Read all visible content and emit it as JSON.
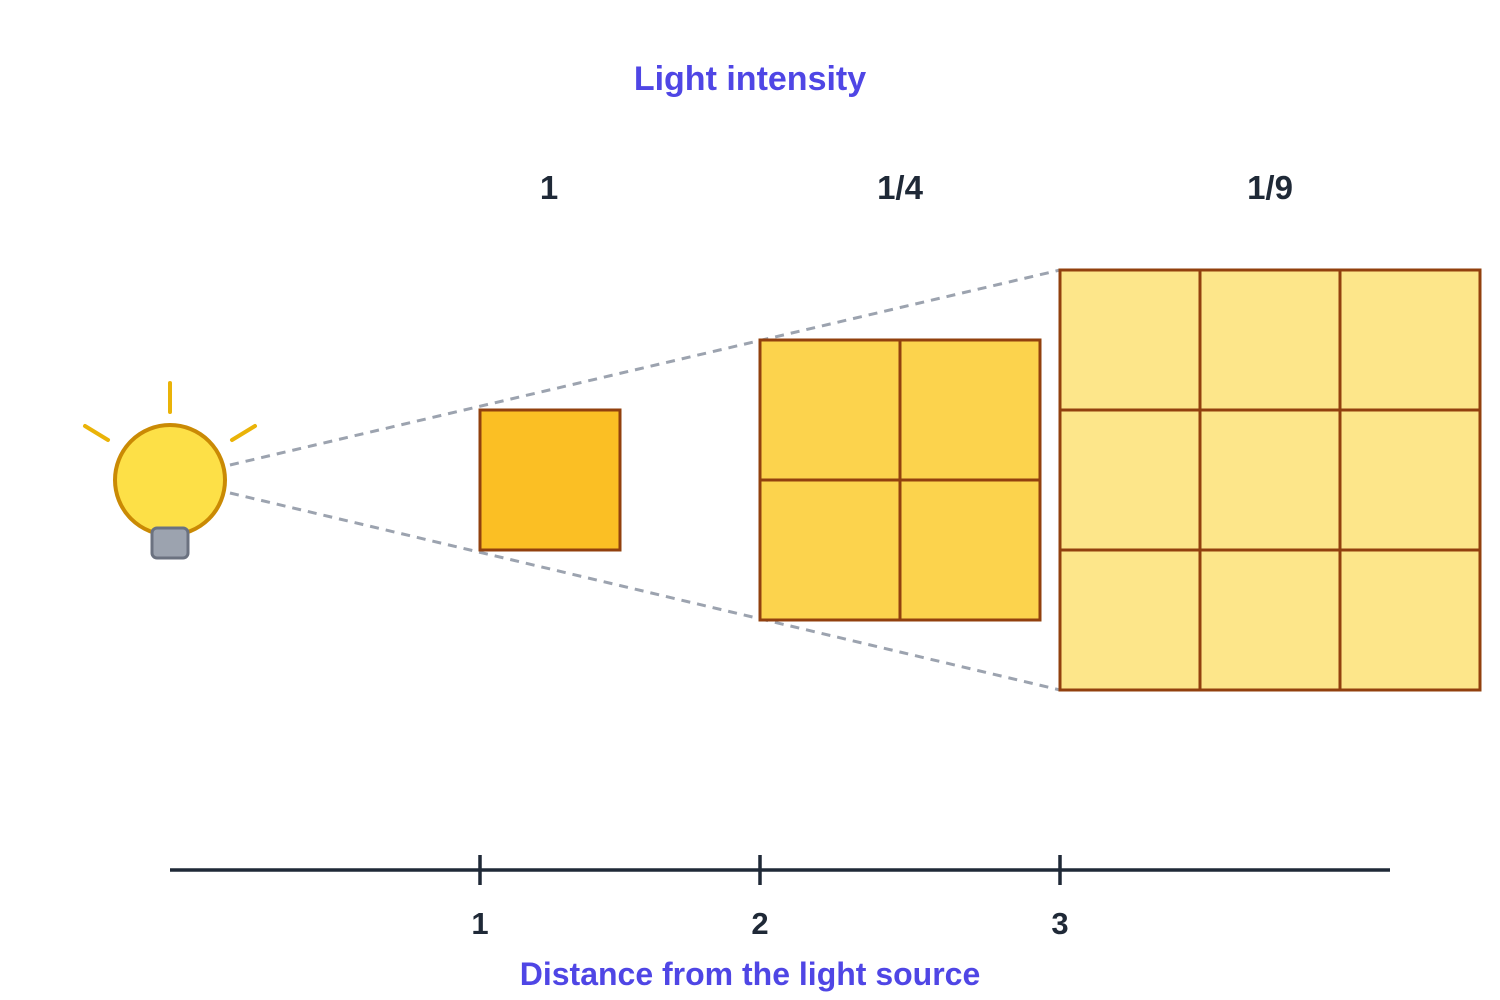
{
  "title": "Light intensity",
  "axis_label": "Distance from the light source",
  "intensity_labels": [
    "1",
    "1/4",
    "1/9"
  ],
  "distance_ticks": [
    "1",
    "2",
    "3"
  ],
  "icons": {
    "source": "light-bulb-icon"
  },
  "colors": {
    "title": "#4F46E5",
    "axis_label": "#4F46E5",
    "label_text": "#1F2937",
    "axis_line": "#1F2937",
    "square_1": "#FBBF24",
    "square_2": "#FCD34D",
    "square_3": "#FDE68A",
    "square_stroke": "#92400E",
    "bulb_fill": "#FDE047",
    "bulb_stroke": "#CA8A04",
    "bulb_rays": "#EAB308",
    "bulb_base": "#9CA3AF",
    "bulb_base_stroke": "#6B7280",
    "beam_lines": "#9CA3AF"
  }
}
